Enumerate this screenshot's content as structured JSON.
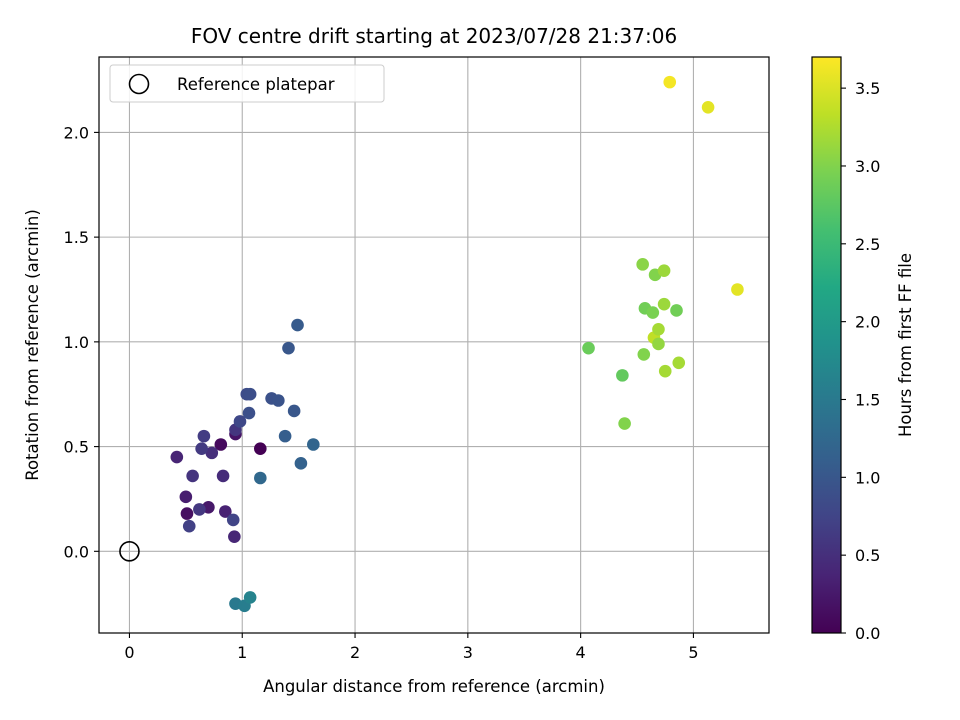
{
  "chart_data": {
    "type": "scatter",
    "title": "FOV centre drift starting at 2023/07/28 21:37:06",
    "xlabel": "Angular distance from reference (arcmin)",
    "ylabel": "Rotation from reference (arcmin)",
    "xlim": [
      -0.27,
      5.67
    ],
    "ylim": [
      -0.39,
      2.36
    ],
    "xticks": [
      0,
      1,
      2,
      3,
      4,
      5
    ],
    "xtick_labels": [
      "0",
      "1",
      "2",
      "3",
      "4",
      "5"
    ],
    "yticks": [
      0.0,
      0.5,
      1.0,
      1.5,
      2.0
    ],
    "ytick_labels": [
      "0.0",
      "0.5",
      "1.0",
      "1.5",
      "2.0"
    ],
    "grid": true,
    "legend": {
      "position": "upper-left",
      "entries": [
        "Reference platepar"
      ]
    },
    "colorbar": {
      "label": "Hours from first FF file",
      "colormap": "viridis",
      "range": [
        0.0,
        3.7
      ],
      "ticks": [
        0.0,
        0.5,
        1.0,
        1.5,
        2.0,
        2.5,
        3.0,
        3.5
      ],
      "tick_labels": [
        "0.0",
        "0.5",
        "1.0",
        "1.5",
        "2.0",
        "2.5",
        "3.0",
        "3.5"
      ]
    },
    "reference_point": {
      "x": 0.0,
      "y": 0.0,
      "marker": "open-circle",
      "color": "#000000"
    },
    "points": [
      {
        "x": 1.16,
        "y": 0.49,
        "h": 0.0
      },
      {
        "x": 0.81,
        "y": 0.51,
        "h": 0.1
      },
      {
        "x": 0.51,
        "y": 0.18,
        "h": 0.15
      },
      {
        "x": 0.94,
        "y": 0.56,
        "h": 0.2
      },
      {
        "x": 0.7,
        "y": 0.21,
        "h": 0.25
      },
      {
        "x": 0.5,
        "y": 0.26,
        "h": 0.3
      },
      {
        "x": 0.85,
        "y": 0.19,
        "h": 0.35
      },
      {
        "x": 0.42,
        "y": 0.45,
        "h": 0.38
      },
      {
        "x": 0.93,
        "y": 0.07,
        "h": 0.4
      },
      {
        "x": 0.83,
        "y": 0.36,
        "h": 0.45
      },
      {
        "x": 0.73,
        "y": 0.47,
        "h": 0.5
      },
      {
        "x": 0.56,
        "y": 0.36,
        "h": 0.55
      },
      {
        "x": 0.94,
        "y": 0.58,
        "h": 0.58
      },
      {
        "x": 0.62,
        "y": 0.2,
        "h": 0.6
      },
      {
        "x": 0.64,
        "y": 0.49,
        "h": 0.62
      },
      {
        "x": 0.66,
        "y": 0.55,
        "h": 0.65
      },
      {
        "x": 0.53,
        "y": 0.12,
        "h": 0.7
      },
      {
        "x": 0.92,
        "y": 0.15,
        "h": 0.75
      },
      {
        "x": 0.98,
        "y": 0.62,
        "h": 0.8
      },
      {
        "x": 1.04,
        "y": 0.75,
        "h": 0.85
      },
      {
        "x": 1.07,
        "y": 0.75,
        "h": 0.88
      },
      {
        "x": 1.06,
        "y": 0.66,
        "h": 0.9
      },
      {
        "x": 1.26,
        "y": 0.73,
        "h": 0.92
      },
      {
        "x": 1.32,
        "y": 0.72,
        "h": 0.95
      },
      {
        "x": 1.41,
        "y": 0.97,
        "h": 1.0
      },
      {
        "x": 1.46,
        "y": 0.67,
        "h": 1.0
      },
      {
        "x": 1.49,
        "y": 1.08,
        "h": 1.05
      },
      {
        "x": 1.38,
        "y": 0.55,
        "h": 1.1
      },
      {
        "x": 1.52,
        "y": 0.42,
        "h": 1.15
      },
      {
        "x": 1.63,
        "y": 0.51,
        "h": 1.2
      },
      {
        "x": 1.16,
        "y": 0.35,
        "h": 1.25
      },
      {
        "x": 0.94,
        "y": -0.25,
        "h": 1.5
      },
      {
        "x": 1.02,
        "y": -0.26,
        "h": 1.55
      },
      {
        "x": 1.07,
        "y": -0.22,
        "h": 1.65
      },
      {
        "x": 4.07,
        "y": 0.97,
        "h": 2.85
      },
      {
        "x": 4.37,
        "y": 0.84,
        "h": 2.8
      },
      {
        "x": 4.39,
        "y": 0.61,
        "h": 3.0
      },
      {
        "x": 4.55,
        "y": 1.37,
        "h": 3.05
      },
      {
        "x": 4.57,
        "y": 1.16,
        "h": 2.9
      },
      {
        "x": 4.56,
        "y": 0.94,
        "h": 3.0
      },
      {
        "x": 4.64,
        "y": 1.14,
        "h": 2.95
      },
      {
        "x": 4.66,
        "y": 1.32,
        "h": 3.0
      },
      {
        "x": 4.65,
        "y": 1.02,
        "h": 3.35
      },
      {
        "x": 4.69,
        "y": 1.06,
        "h": 3.2
      },
      {
        "x": 4.69,
        "y": 0.99,
        "h": 3.1
      },
      {
        "x": 4.74,
        "y": 1.34,
        "h": 3.15
      },
      {
        "x": 4.74,
        "y": 1.18,
        "h": 3.15
      },
      {
        "x": 4.75,
        "y": 0.86,
        "h": 3.2
      },
      {
        "x": 4.85,
        "y": 1.15,
        "h": 2.9
      },
      {
        "x": 4.87,
        "y": 0.9,
        "h": 3.2
      },
      {
        "x": 4.79,
        "y": 2.24,
        "h": 3.65
      },
      {
        "x": 5.13,
        "y": 2.12,
        "h": 3.55
      },
      {
        "x": 5.39,
        "y": 1.25,
        "h": 3.55
      }
    ]
  }
}
